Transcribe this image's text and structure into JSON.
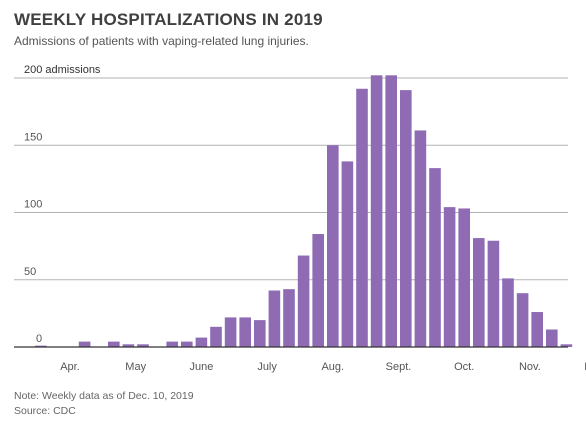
{
  "title": "WEEKLY HOSPITALIZATIONS IN 2019",
  "subtitle": "Admissions of patients with vaping-related lung injuries.",
  "note": "Note: Weekly data as of Dec. 10, 2019",
  "source": "Source: CDC",
  "colors": {
    "bar": "#8e6bb3",
    "grid": "#b3b3b3",
    "axis": "#333333",
    "text": "#555555"
  },
  "chart_data": {
    "type": "bar",
    "title": "WEEKLY HOSPITALIZATIONS IN 2019",
    "subtitle": "Admissions of patients with vaping-related lung injuries.",
    "ylim": [
      0,
      200
    ],
    "y_ticks": [
      {
        "value": 200,
        "label": "200 admissions"
      },
      {
        "value": 150,
        "label": "150"
      },
      {
        "value": 100,
        "label": "100"
      },
      {
        "value": 50,
        "label": "50"
      },
      {
        "value": 0,
        "label": "0"
      }
    ],
    "month_labels": [
      {
        "label": "Apr.",
        "week": 2
      },
      {
        "label": "May",
        "week": 6.5
      },
      {
        "label": "June",
        "week": 11
      },
      {
        "label": "July",
        "week": 15.5
      },
      {
        "label": "Aug.",
        "week": 20
      },
      {
        "label": "Sept.",
        "week": 24.5
      },
      {
        "label": "Oct.",
        "week": 29
      },
      {
        "label": "Nov.",
        "week": 33.5
      },
      {
        "label": "Dec.",
        "week": 38
      }
    ],
    "values": [
      1,
      0,
      0,
      4,
      0,
      4,
      2,
      2,
      0,
      4,
      4,
      7,
      15,
      22,
      22,
      20,
      42,
      43,
      68,
      84,
      150,
      138,
      192,
      202,
      202,
      191,
      161,
      133,
      104,
      103,
      81,
      79,
      51,
      40,
      26,
      13,
      2
    ],
    "grid": true,
    "legend": "none"
  }
}
